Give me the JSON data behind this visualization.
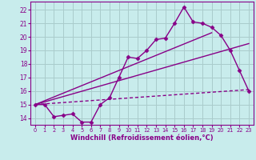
{
  "background_color": "#c8ecec",
  "grid_color": "#aacccc",
  "line_color": "#880088",
  "xlim": [
    -0.5,
    23.5
  ],
  "ylim": [
    13.5,
    22.6
  ],
  "xlabel": "Windchill (Refroidissement éolien,°C)",
  "xticks": [
    0,
    1,
    2,
    3,
    4,
    5,
    6,
    7,
    8,
    9,
    10,
    11,
    12,
    13,
    14,
    15,
    16,
    17,
    18,
    19,
    20,
    21,
    22,
    23
  ],
  "yticks": [
    14,
    15,
    16,
    17,
    18,
    19,
    20,
    21,
    22
  ],
  "line1_x": [
    0,
    1,
    2,
    3,
    4,
    5,
    6,
    7,
    8,
    9,
    10,
    11,
    12,
    13,
    14,
    15,
    16,
    17,
    18,
    19,
    20,
    21,
    22,
    23
  ],
  "line1_y": [
    15.0,
    15.0,
    14.1,
    14.2,
    14.3,
    13.7,
    13.7,
    15.0,
    15.5,
    17.0,
    18.5,
    18.4,
    19.0,
    19.8,
    19.9,
    21.0,
    22.2,
    21.1,
    21.0,
    20.7,
    20.1,
    19.0,
    17.5,
    16.0
  ],
  "line2_x": [
    0,
    19
  ],
  "line2_y": [
    15.0,
    20.3
  ],
  "line3_x": [
    0,
    23
  ],
  "line3_y": [
    15.0,
    16.1
  ],
  "line4_x": [
    0,
    23
  ],
  "line4_y": [
    15.0,
    19.5
  ],
  "markersize": 2.5,
  "linewidth": 1.0
}
